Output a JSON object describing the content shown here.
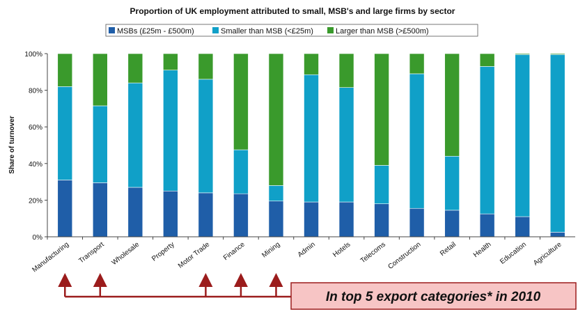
{
  "chart_data": {
    "type": "bar",
    "stacked": true,
    "title": "Proportion of UK employment attributed to small, MSB's and large firms by sector",
    "xlabel": "",
    "ylabel": "Share of turnover",
    "ylim": [
      0,
      100
    ],
    "yticks": [
      "0%",
      "20%",
      "40%",
      "60%",
      "80%",
      "100%"
    ],
    "grid": false,
    "legend_position": "top",
    "categories": [
      "Manufacturing",
      "Transport",
      "Wholesale",
      "Property",
      "Motor Trade",
      "Finance",
      "Mining",
      "Admin",
      "Hotels",
      "Telecoms",
      "Construction",
      "Retail",
      "Health",
      "Education",
      "Agriculture"
    ],
    "series": [
      {
        "name": "MSBs (£25m - £500m)",
        "color": "#1f5ea8",
        "values": [
          31,
          29.5,
          27,
          25,
          24,
          23.5,
          19.5,
          19,
          19,
          18,
          15.5,
          14.5,
          12.5,
          11,
          2.5
        ]
      },
      {
        "name": "Smaller than MSB (<£25m)",
        "color": "#10a0c8",
        "values": [
          51,
          42,
          57,
          66,
          62,
          24,
          8.5,
          69.5,
          62.5,
          21,
          73.5,
          29.5,
          80.5,
          88.5,
          97
        ]
      },
      {
        "name": "Larger than MSB (>£500m)",
        "color": "#3a9a2c",
        "values": [
          18,
          28.5,
          16,
          9,
          14,
          52.5,
          72,
          11.5,
          18.5,
          61,
          11,
          56,
          7,
          0.5,
          0.5
        ]
      }
    ],
    "annotation": {
      "text": "In top 5 export categories* in 2010",
      "categories": [
        "Manufacturing",
        "Transport",
        "Motor Trade",
        "Finance",
        "Mining"
      ],
      "arrow_color": "#9b1c1c",
      "box_fill": "#f7c5c5"
    }
  }
}
